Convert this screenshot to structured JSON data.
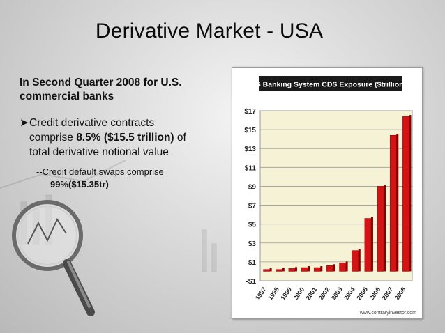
{
  "slide": {
    "title": "Derivative Market - USA",
    "intro_line1": "In Second Quarter 2008 for U.S.",
    "intro_line2": "commercial banks",
    "bullet_line1": "Credit derivative contracts",
    "bullet_line2_pre": "comprise ",
    "bullet_line2_bold": "8.5% ($15.5 trillion)",
    "bullet_line2_post": " of",
    "bullet_line3": "total derivative notional value",
    "sub_line1": "--Credit default swaps comprise",
    "sub_line2": "99%($15.35tr)"
  },
  "chart_data": {
    "type": "bar",
    "title": "US Banking System CDS Exposure ($trillions)",
    "categories": [
      "1997",
      "1998",
      "1999",
      "2000",
      "2001",
      "2002",
      "2003",
      "2004",
      "2005",
      "2006",
      "2007",
      "2008"
    ],
    "values": [
      0.2,
      0.2,
      0.3,
      0.4,
      0.4,
      0.6,
      0.9,
      2.2,
      5.6,
      9,
      14.4,
      16.4
    ],
    "ylim": [
      -1,
      17
    ],
    "yticks": [
      -1,
      1,
      3,
      5,
      7,
      9,
      11,
      13,
      15,
      17
    ],
    "ytick_labels": [
      "-$1",
      "$1",
      "$3",
      "$5",
      "$7",
      "$9",
      "$11",
      "$13",
      "$15",
      "$17"
    ],
    "grid": true,
    "source": "www.contraryinvestor.com",
    "colors": {
      "bar": "#d41414",
      "bar_dark": "#8a0000",
      "plot_bg": "#f5f2d6",
      "title_bg": "#1a1a1a"
    }
  }
}
